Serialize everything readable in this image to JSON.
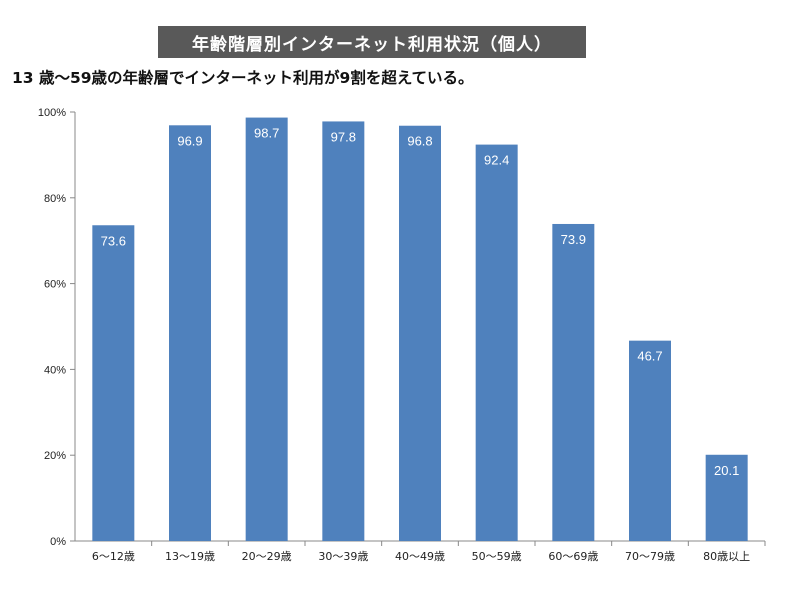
{
  "banner": {
    "title": "年齢階層別インターネット利用状況（個人）"
  },
  "subtitle": "13 歳～59歳の年齢層でインターネット利用が9割を超えている。",
  "chart_data": {
    "type": "bar",
    "categories": [
      "6～12歳",
      "13～19歳",
      "20～29歳",
      "30～39歳",
      "40～49歳",
      "50～59歳",
      "60～69歳",
      "70～79歳",
      "80歳以上"
    ],
    "values": [
      73.6,
      96.9,
      98.7,
      97.8,
      96.8,
      92.4,
      73.9,
      46.7,
      20.1
    ],
    "value_labels": [
      "73.6",
      "96.9",
      "98.7",
      "97.8",
      "96.8",
      "92.4",
      "73.9",
      "46.7",
      "20.1"
    ],
    "y_ticks": [
      0,
      20,
      40,
      60,
      80,
      100
    ],
    "y_tick_labels": [
      "0%",
      "20%",
      "40%",
      "60%",
      "80%",
      "100%"
    ],
    "ylim": [
      0,
      100
    ],
    "grid": false,
    "legend": "none",
    "bar_color": "#4F81BD",
    "label_color": "#FFFFFF"
  }
}
